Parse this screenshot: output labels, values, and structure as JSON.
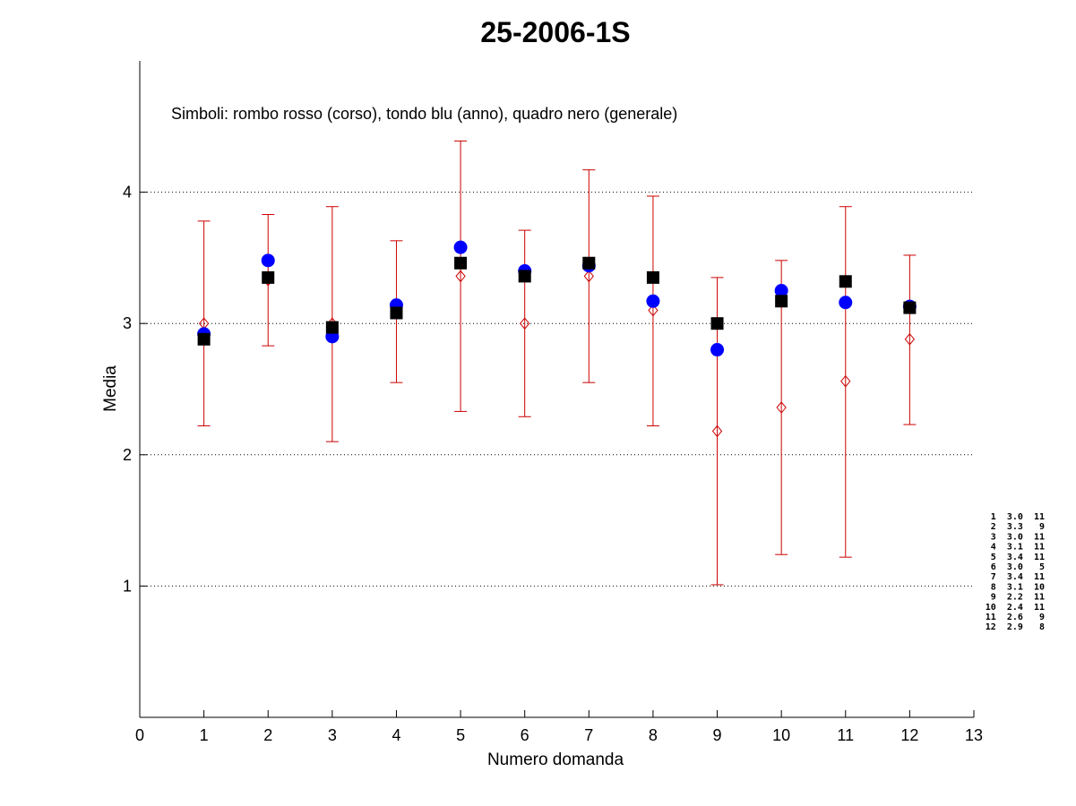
{
  "chart_data": {
    "type": "scatter",
    "title": "25-2006-1S",
    "xlabel": "Numero domanda",
    "ylabel": "Media",
    "annotation": "Simboli: rombo rosso (corso), tondo blu (anno), quadro nero (generale)",
    "xlim": [
      0,
      13
    ],
    "ylim": [
      0,
      5
    ],
    "xticks": [
      "0",
      "1",
      "2",
      "3",
      "4",
      "5",
      "6",
      "7",
      "8",
      "9",
      "10",
      "11",
      "12",
      "13"
    ],
    "yticks": [
      "1",
      "2",
      "3",
      "4"
    ],
    "grid_y": true,
    "x": [
      1,
      2,
      3,
      4,
      5,
      6,
      7,
      8,
      9,
      10,
      11,
      12
    ],
    "series": [
      {
        "symbol": "diamond",
        "color": "#cc0000",
        "values": [
          3.0,
          3.33,
          3.0,
          3.09,
          3.36,
          3.0,
          3.36,
          3.1,
          2.18,
          2.36,
          2.56,
          2.88
        ],
        "err_low": [
          2.22,
          2.83,
          2.1,
          2.55,
          2.33,
          2.29,
          2.55,
          2.22,
          1.01,
          1.24,
          1.22,
          2.23
        ],
        "err_high": [
          3.78,
          3.83,
          3.89,
          3.63,
          4.39,
          3.71,
          4.17,
          3.97,
          3.35,
          3.48,
          3.89,
          3.52
        ]
      },
      {
        "symbol": "circle",
        "color": "#0000ff",
        "values": [
          2.92,
          3.48,
          2.9,
          3.14,
          3.58,
          3.4,
          3.44,
          3.17,
          2.8,
          3.25,
          3.16,
          3.13
        ]
      },
      {
        "symbol": "square",
        "color": "#000000",
        "values": [
          2.88,
          3.35,
          2.97,
          3.08,
          3.46,
          3.36,
          3.46,
          3.35,
          3.0,
          3.17,
          3.32,
          3.12
        ]
      }
    ],
    "side_table": [
      " 1  3.0  11",
      " 2  3.3   9",
      " 3  3.0  11",
      " 4  3.1  11",
      " 5  3.4  11",
      " 6  3.0   5",
      " 7  3.4  11",
      " 8  3.1  10",
      " 9  2.2  11",
      "10  2.4  11",
      "11  2.6   9",
      "12  2.9   8"
    ]
  }
}
